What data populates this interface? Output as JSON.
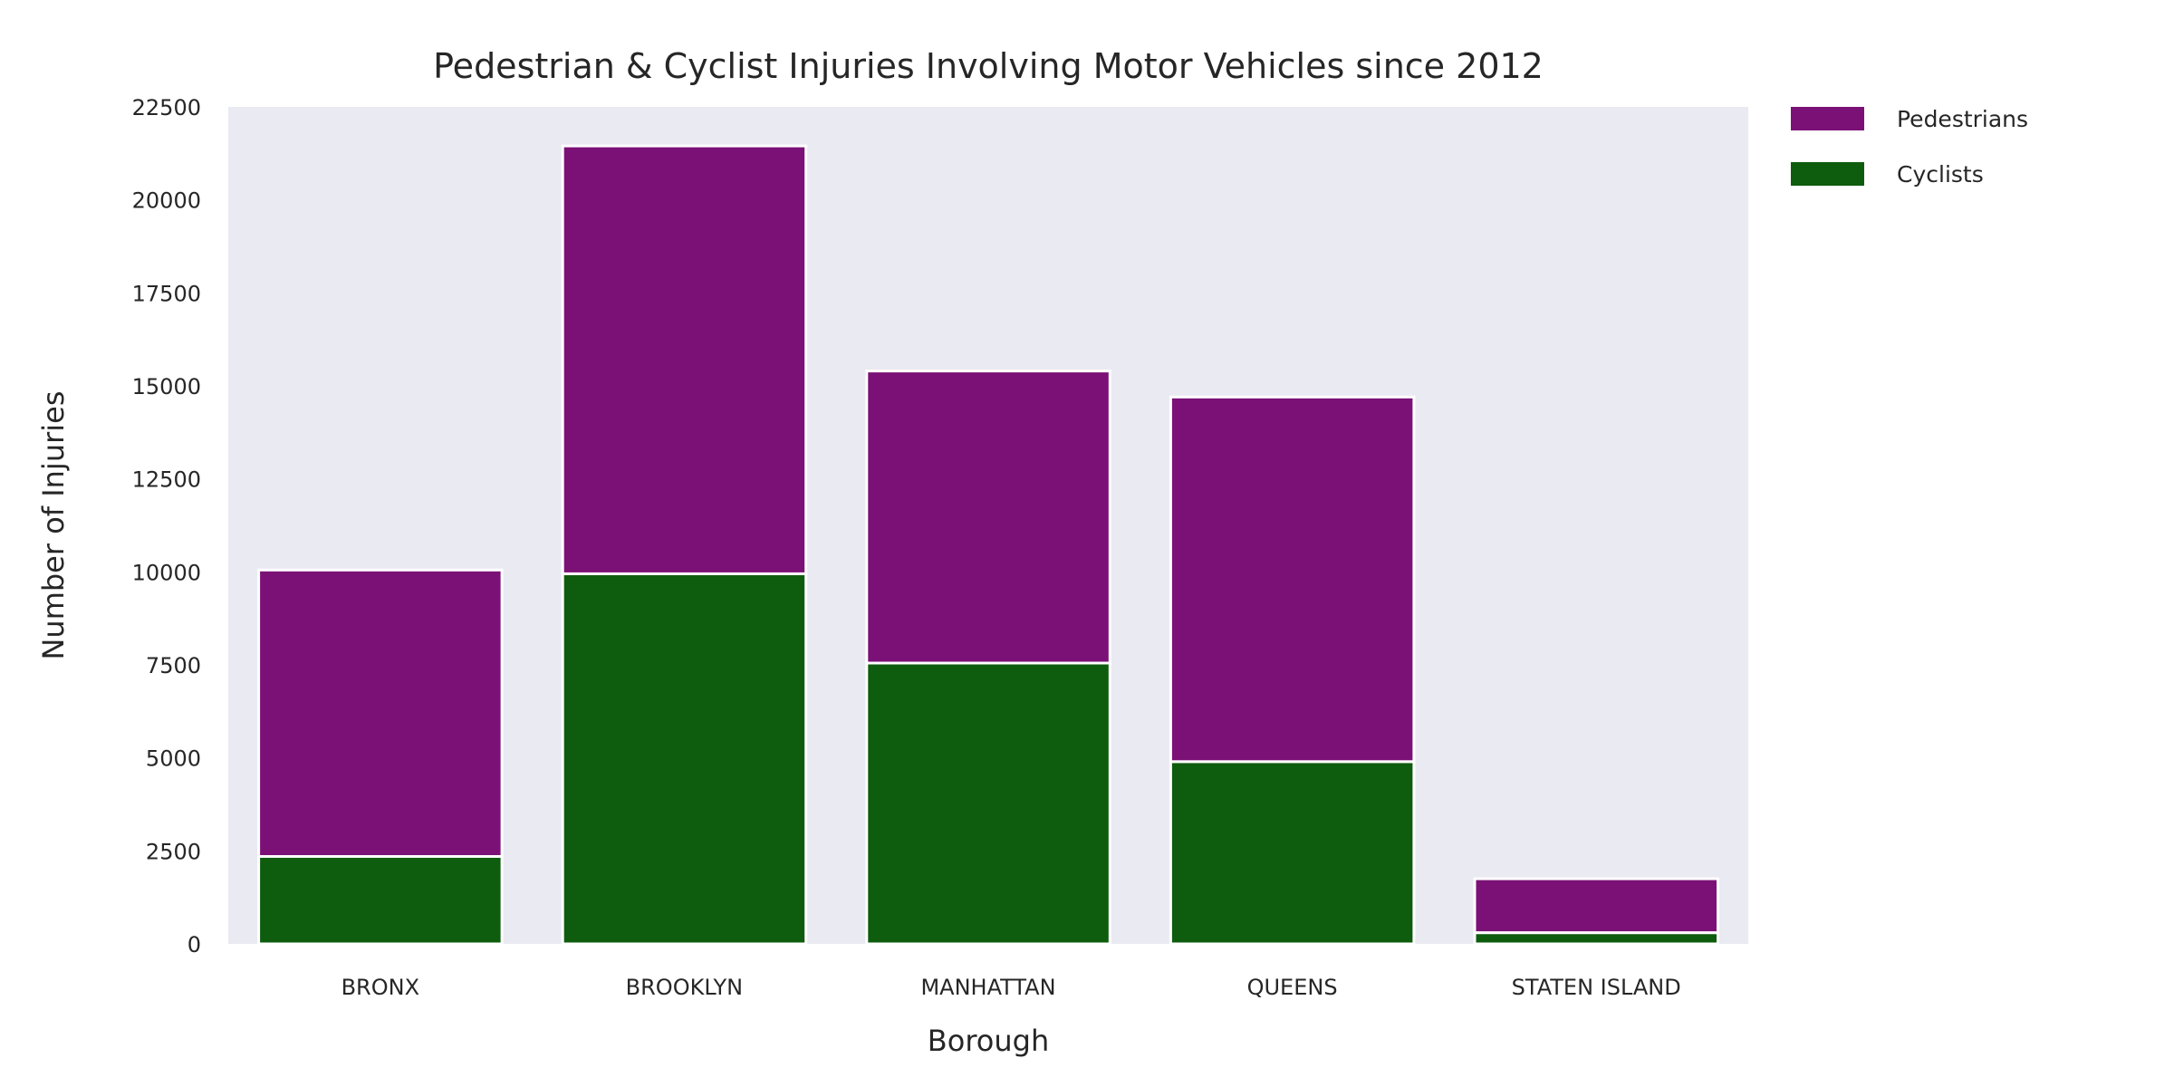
{
  "chart_data": {
    "type": "bar",
    "stacked": true,
    "title": "Pedestrian & Cyclist Injuries Involving Motor Vehicles since 2012",
    "xlabel": "Borough",
    "ylabel": "Number of Injuries",
    "categories": [
      "BRONX",
      "BROOKLYN",
      "MANHATTAN",
      "QUEENS",
      "STATEN ISLAND"
    ],
    "series": [
      {
        "name": "Cyclists",
        "color": "#0e5c0e",
        "values": [
          2350,
          9950,
          7550,
          4900,
          300
        ]
      },
      {
        "name": "Pedestrians",
        "color": "#7b1176",
        "values": [
          7700,
          11500,
          7850,
          9800,
          1450
        ]
      }
    ],
    "ylim": [
      0,
      22500
    ],
    "yticks": [
      0,
      2500,
      5000,
      7500,
      10000,
      12500,
      15000,
      17500,
      20000,
      22500
    ],
    "legend": {
      "placement": "outside-top-right",
      "order": [
        "Pedestrians",
        "Cyclists"
      ]
    },
    "grid": false,
    "background": "#eaeaf2"
  }
}
